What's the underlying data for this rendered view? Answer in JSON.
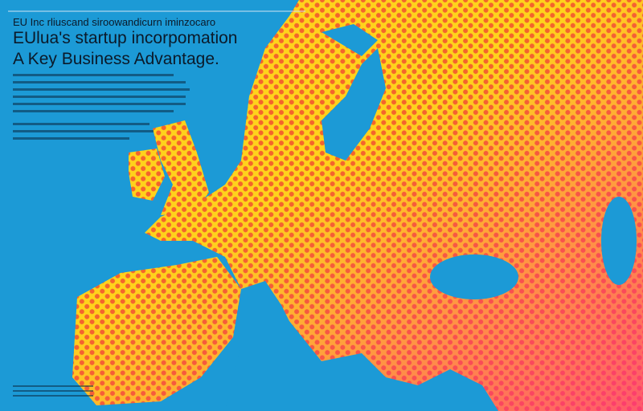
{
  "header": {
    "kicker": "EU Inc rliuscand siroowandicurn iminzocaro",
    "title": "EUlua's startup incorpomation",
    "subtitle": "A Key Business Advantage."
  }
}
